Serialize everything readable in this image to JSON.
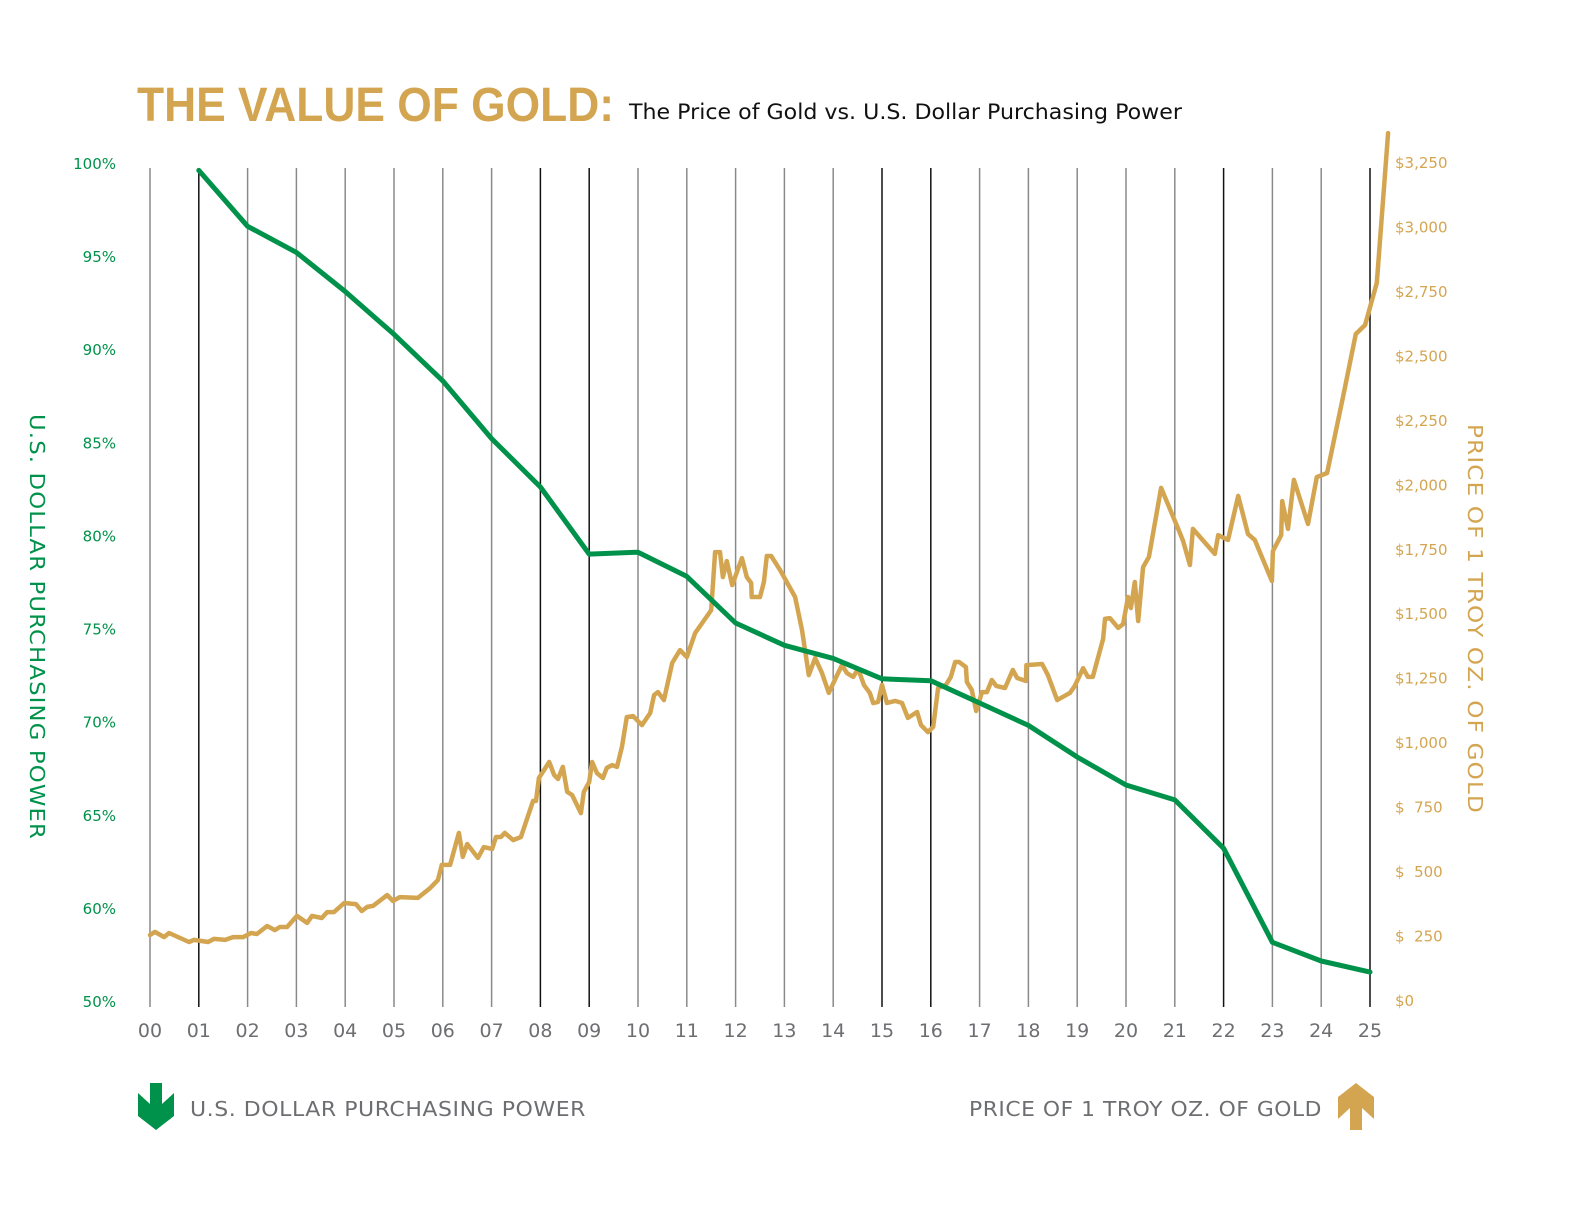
{
  "chart_data": {
    "type": "line",
    "title": "THE VALUE OF GOLD:",
    "subtitle": "The Price of Gold vs. U.S. Dollar Purchasing Power",
    "x_ticks": [
      "00",
      "01",
      "02",
      "03",
      "04",
      "05",
      "06",
      "07",
      "08",
      "09",
      "10",
      "11",
      "12",
      "13",
      "14",
      "15",
      "16",
      "17",
      "18",
      "19",
      "20",
      "21",
      "22",
      "23",
      "24",
      "25"
    ],
    "x_range": [
      2000,
      2025
    ],
    "left_axis": {
      "label": "U.S. DOLLAR PURCHASING POWER",
      "ticks": [
        100,
        95,
        90,
        85,
        80,
        75,
        70,
        65,
        60,
        50
      ],
      "tick_labels": [
        "100%",
        "95%",
        "90%",
        "85%",
        "80%",
        "75%",
        "70%",
        "65%",
        "60%",
        "50%"
      ],
      "note_axis_break": "scale break between 60% and 50%",
      "color": "#00924a"
    },
    "right_axis": {
      "label": "PRICE OF 1 TROY OZ. OF GOLD",
      "ticks": [
        3250,
        3000,
        2750,
        2500,
        2250,
        2000,
        1750,
        1500,
        1250,
        1000,
        750,
        500,
        250,
        0
      ],
      "tick_labels": [
        "$3,250",
        "$3,000",
        "$2,750",
        "$2,500",
        "$2,250",
        "$2,000",
        "$1,750",
        "$1,500",
        "$1,250",
        "$1,000",
        "$  750",
        "$  500",
        "$  250",
        "$0"
      ],
      "ylim": [
        0,
        3250
      ],
      "color": "#d4a551"
    },
    "grid": "vertical",
    "series": [
      {
        "name": "U.S. DOLLAR PURCHASING POWER",
        "axis": "left",
        "color": "#00924a",
        "x": [
          2001,
          2002,
          2003,
          2004,
          2005,
          2006,
          2007,
          2008,
          2009,
          2010,
          2011,
          2012,
          2013,
          2014,
          2015,
          2016,
          2017,
          2018,
          2019,
          2020,
          2021,
          2022,
          2023,
          2024,
          2025
        ],
        "y": [
          99.6,
          96.6,
          95.2,
          93.1,
          90.8,
          88.3,
          85.2,
          82.6,
          79.0,
          79.1,
          77.8,
          75.3,
          74.1,
          73.4,
          72.3,
          72.2,
          71.0,
          69.8,
          68.1,
          66.6,
          65.8,
          63.2,
          56.3,
          54.3,
          53.1
        ]
      },
      {
        "name": "PRICE OF 1 TROY OZ. OF GOLD",
        "axis": "right",
        "color": "#d4a551",
        "x": [
          2000.0,
          2000.1,
          2000.29,
          2000.39,
          2000.8,
          2000.9,
          2001.19,
          2001.31,
          2001.54,
          2001.7,
          2001.91,
          2002.07,
          2002.19,
          2002.4,
          2002.56,
          2002.66,
          2002.81,
          2003.01,
          2003.22,
          2003.32,
          2003.52,
          2003.63,
          2003.77,
          2003.98,
          2004.22,
          2004.34,
          2004.45,
          2004.57,
          2004.86,
          2004.98,
          2005.12,
          2005.49,
          2005.74,
          2005.9,
          2005.98,
          2006.15,
          2006.33,
          2006.41,
          2006.5,
          2006.72,
          2006.84,
          2007.01,
          2007.09,
          2007.19,
          2007.27,
          2007.44,
          2007.6,
          2007.85,
          2007.91,
          2007.97,
          2008.18,
          2008.28,
          2008.36,
          2008.46,
          2008.55,
          2008.65,
          2008.83,
          2008.89,
          2009.0,
          2009.06,
          2009.16,
          2009.28,
          2009.36,
          2009.47,
          2009.57,
          2009.67,
          2009.77,
          2009.9,
          2010.08,
          2010.25,
          2010.33,
          2010.41,
          2010.53,
          2010.7,
          2010.86,
          2011.0,
          2011.17,
          2011.33,
          2011.5,
          2011.58,
          2011.68,
          2011.74,
          2011.82,
          2011.93,
          2012.13,
          2012.23,
          2012.32,
          2012.33,
          2012.5,
          2012.58,
          2012.64,
          2012.73,
          2012.91,
          2013.22,
          2013.36,
          2013.5,
          2013.63,
          2013.77,
          2013.91,
          2014.08,
          2014.18,
          2014.28,
          2014.41,
          2014.51,
          2014.63,
          2014.75,
          2014.82,
          2014.92,
          2015.0,
          2015.1,
          2015.27,
          2015.41,
          2015.53,
          2015.72,
          2015.8,
          2015.94,
          2016.05,
          2016.15,
          2016.31,
          2016.41,
          2016.5,
          2016.58,
          2016.72,
          2016.74,
          2016.84,
          2016.93,
          2017.05,
          2017.15,
          2017.25,
          2017.34,
          2017.52,
          2017.68,
          2017.77,
          2017.95,
          2017.96,
          2018.28,
          2018.4,
          2018.59,
          2018.85,
          2018.95,
          2019.12,
          2019.22,
          2019.32,
          2019.53,
          2019.57,
          2019.67,
          2019.84,
          2019.94,
          2020.04,
          2020.1,
          2020.18,
          2020.25,
          2020.35,
          2020.47,
          2020.72,
          2021.07,
          2021.17,
          2021.31,
          2021.37,
          2021.82,
          2021.89,
          2022.09,
          2022.3,
          2022.5,
          2022.64,
          2022.99,
          2023.01,
          2023.18,
          2023.2,
          2023.32,
          2023.44,
          2023.73,
          2023.91,
          2024.12,
          2024.45,
          2024.71,
          2024.9,
          2025.14,
          2025.37
        ],
        "y": [
          252,
          264,
          244,
          260,
          225,
          233,
          225,
          237,
          233,
          244,
          244,
          260,
          256,
          287,
          271,
          283,
          283,
          326,
          299,
          326,
          318,
          341,
          341,
          376,
          372,
          345,
          361,
          365,
          407,
          384,
          399,
          396,
          434,
          465,
          524,
          524,
          648,
          555,
          605,
          551,
          593,
          586,
          632,
          632,
          648,
          620,
          632,
          772,
          772,
          861,
          923,
          873,
          857,
          904,
          807,
          795,
          725,
          807,
          845,
          923,
          880,
          861,
          900,
          911,
          904,
          981,
          1097,
          1101,
          1066,
          1113,
          1183,
          1194,
          1163,
          1307,
          1357,
          1330,
          1423,
          1466,
          1512,
          1737,
          1737,
          1640,
          1702,
          1609,
          1714,
          1640,
          1617,
          1563,
          1563,
          1621,
          1722,
          1722,
          1668,
          1563,
          1435,
          1260,
          1326,
          1268,
          1191,
          1260,
          1299,
          1268,
          1253,
          1284,
          1222,
          1191,
          1152,
          1156,
          1222,
          1152,
          1160,
          1152,
          1094,
          1117,
          1066,
          1039,
          1059,
          1210,
          1222,
          1253,
          1311,
          1311,
          1291,
          1233,
          1202,
          1121,
          1194,
          1194,
          1241,
          1218,
          1210,
          1280,
          1249,
          1237,
          1299,
          1303,
          1260,
          1163,
          1191,
          1218,
          1287,
          1253,
          1253,
          1400,
          1478,
          1481,
          1443,
          1458,
          1563,
          1520,
          1621,
          1470,
          1679,
          1718,
          1986,
          1827,
          1780,
          1687,
          1827,
          1730,
          1803,
          1784,
          1955,
          1807,
          1784,
          1625,
          1741,
          1803,
          1935,
          1827,
          2017,
          1846,
          2028,
          2044,
          2342,
          2583,
          2618,
          2781,
          3362
        ]
      }
    ],
    "legend": {
      "left": {
        "label": "U.S. DOLLAR PURCHASING POWER",
        "icon": "arrow-down-icon",
        "color": "#00924a"
      },
      "right": {
        "label": "PRICE OF 1 TROY OZ. OF GOLD",
        "icon": "arrow-up-icon",
        "color": "#d4a551"
      }
    }
  }
}
